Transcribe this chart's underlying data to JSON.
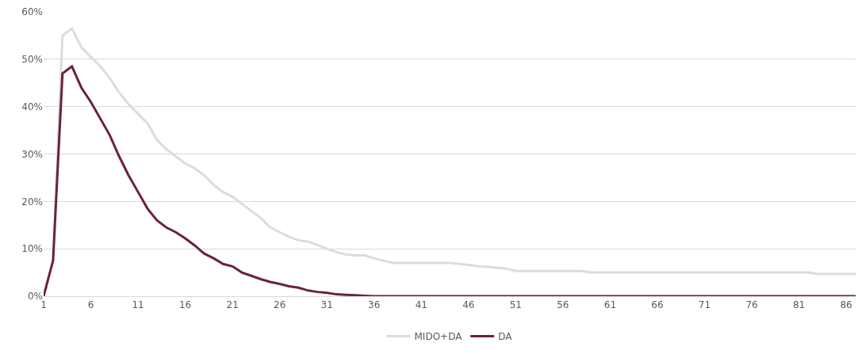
{
  "chart_data": {
    "type": "line",
    "x": [
      1,
      2,
      3,
      4,
      5,
      6,
      7,
      8,
      9,
      10,
      11,
      12,
      13,
      14,
      15,
      16,
      17,
      18,
      19,
      20,
      21,
      22,
      23,
      24,
      25,
      26,
      27,
      28,
      29,
      30,
      31,
      32,
      33,
      34,
      35,
      36,
      37,
      38,
      39,
      40,
      41,
      42,
      43,
      44,
      45,
      46,
      47,
      48,
      49,
      50,
      51,
      52,
      53,
      54,
      55,
      56,
      57,
      58,
      59,
      60,
      61,
      62,
      63,
      64,
      65,
      66,
      67,
      68,
      69,
      70,
      71,
      72,
      73,
      74,
      75,
      76,
      77,
      78,
      79,
      80,
      81,
      82,
      83,
      84,
      85,
      86,
      87
    ],
    "series": [
      {
        "name": "MIDO+DA",
        "color": "#dcdcdc",
        "values": [
          0,
          7.5,
          55,
          56.5,
          52.5,
          50.5,
          48.5,
          46,
          43,
          40.5,
          38.5,
          36.5,
          33,
          31,
          29.5,
          28,
          27,
          25.5,
          23.5,
          22,
          21,
          19.5,
          18,
          16.5,
          14.5,
          13.5,
          12.5,
          11.8,
          11.5,
          10.8,
          10,
          9.3,
          8.8,
          8.6,
          8.6,
          8,
          7.5,
          7,
          7,
          7,
          7,
          7,
          7,
          7,
          6.8,
          6.6,
          6.3,
          6.2,
          6,
          5.8,
          5.3,
          5.3,
          5.3,
          5.3,
          5.3,
          5.3,
          5.3,
          5.3,
          5,
          5,
          5,
          5,
          5,
          5,
          5,
          5,
          5,
          5,
          5,
          5,
          5,
          5,
          5,
          5,
          5,
          5,
          5,
          5,
          5,
          5,
          5,
          5,
          4.7,
          4.7,
          4.7,
          4.7,
          4.7
        ]
      },
      {
        "name": "DA",
        "color": "#6b2335",
        "values": [
          0,
          7.5,
          47,
          48.5,
          44,
          41,
          37.5,
          34,
          29.5,
          25.5,
          22,
          18.5,
          16,
          14.5,
          13.5,
          12.2,
          10.7,
          9,
          8,
          6.8,
          6.3,
          5,
          4.3,
          3.6,
          3,
          2.6,
          2.1,
          1.8,
          1.2,
          0.9,
          0.7,
          0.4,
          0.3,
          0.2,
          0.1,
          0,
          0,
          0,
          0,
          0,
          0,
          0,
          0,
          0,
          0,
          0,
          0,
          0,
          0,
          0,
          0,
          0,
          0,
          0,
          0,
          0,
          0,
          0,
          0,
          0,
          0,
          0,
          0,
          0,
          0,
          0,
          0,
          0,
          0,
          0,
          0,
          0,
          0,
          0,
          0,
          0,
          0,
          0,
          0,
          0,
          0,
          0,
          0,
          0,
          0,
          0,
          0
        ]
      }
    ],
    "xlim": [
      1,
      87
    ],
    "xticks": [
      1,
      6,
      11,
      16,
      21,
      26,
      31,
      36,
      41,
      46,
      51,
      56,
      61,
      66,
      71,
      76,
      81,
      86
    ],
    "ylim": [
      0,
      60
    ],
    "yticks": [
      {
        "value": 0,
        "label": "0%"
      },
      {
        "value": 10,
        "label": "10%"
      },
      {
        "value": 20,
        "label": "20%"
      },
      {
        "value": 30,
        "label": "30%"
      },
      {
        "value": 40,
        "label": "40%"
      },
      {
        "value": 50,
        "label": "50%"
      },
      {
        "value": 60,
        "label": "60%"
      }
    ],
    "grid": "y",
    "legend": "bottom",
    "marker": "none",
    "line_style": "solid"
  }
}
